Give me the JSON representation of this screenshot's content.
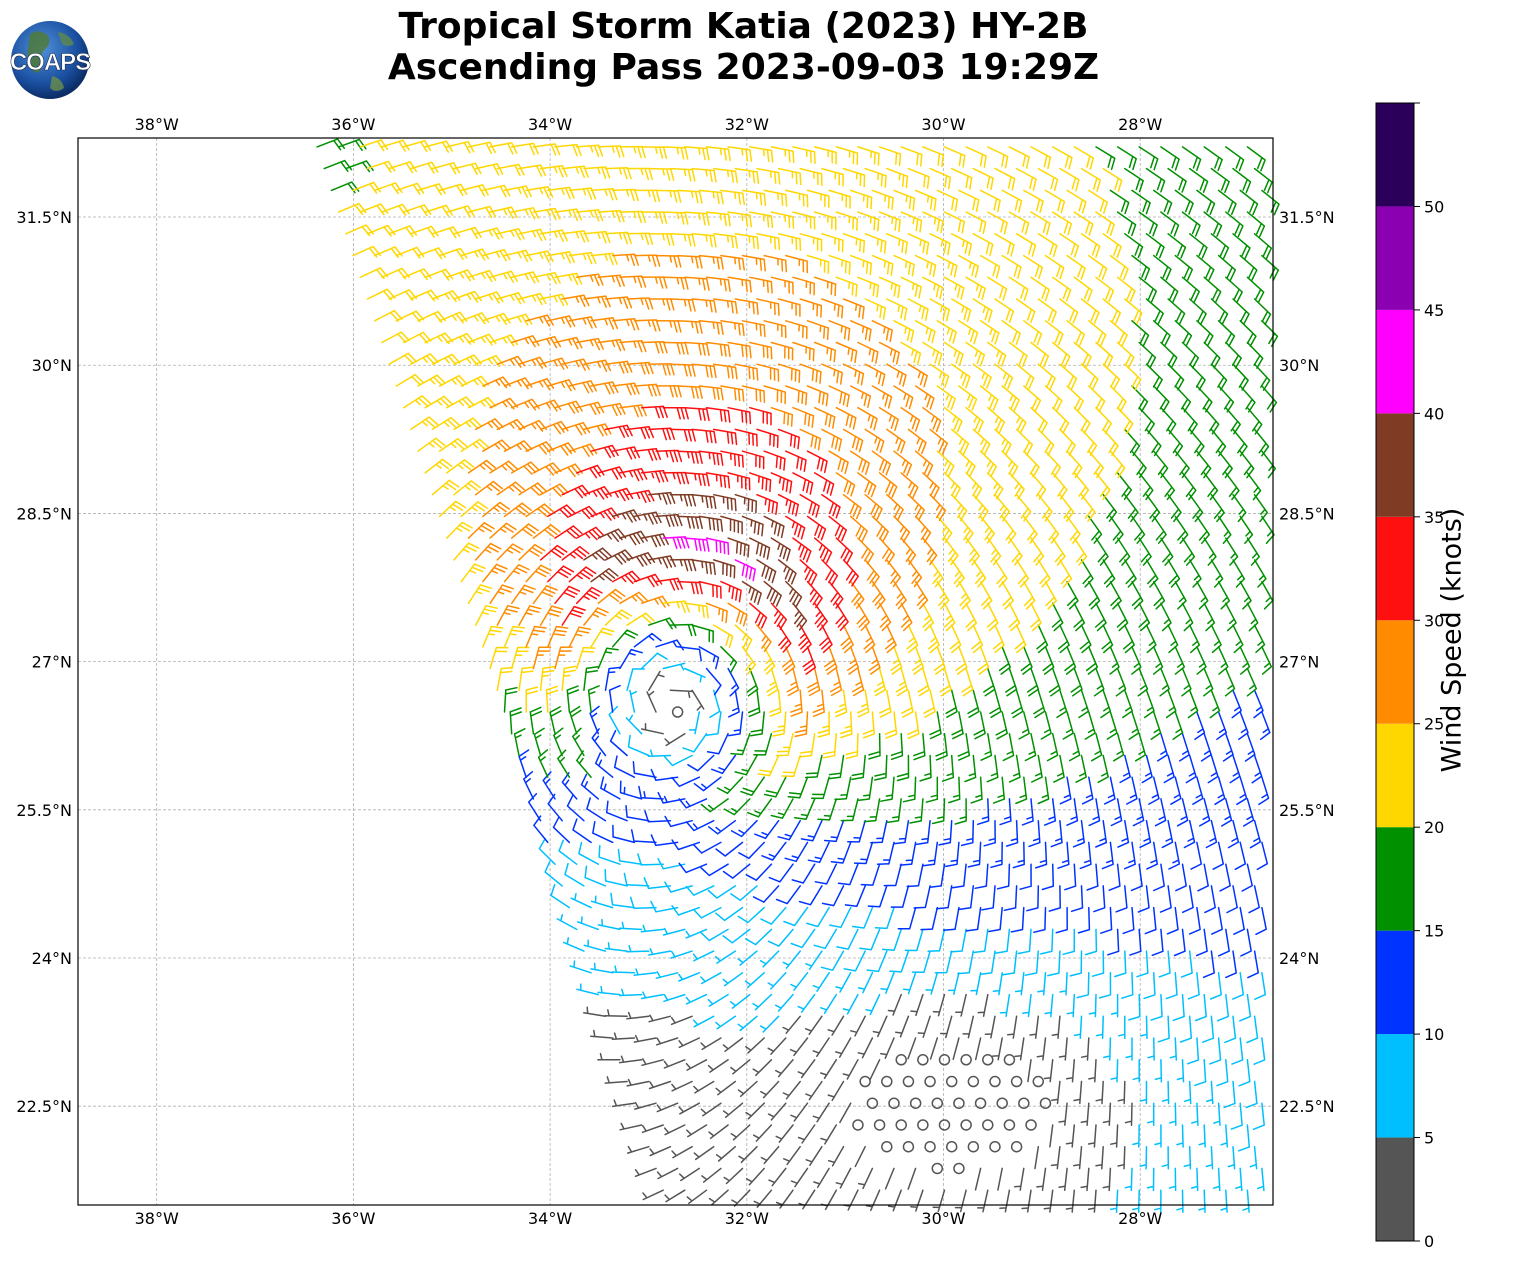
{
  "title_line1": "Tropical Storm Katia (2023) HY-2B",
  "title_line2": "Ascending Pass 2023-09-03 19:29Z",
  "logo_text": "COAPS",
  "map": {
    "lon_min": -38.8,
    "lon_max": -26.65,
    "lat_min": 21.5,
    "lat_max": 32.3,
    "lon_ticks": [
      -38,
      -36,
      -34,
      -32,
      -30,
      -28
    ],
    "lon_tick_labels": [
      "38°W",
      "36°W",
      "34°W",
      "32°W",
      "30°W",
      "28°W"
    ],
    "lat_ticks": [
      22.5,
      24,
      25.5,
      27,
      28.5,
      30,
      31.5
    ],
    "lat_tick_labels": [
      "22.5°N",
      "24°N",
      "25.5°N",
      "27°N",
      "28.5°N",
      "30°N",
      "31.5°N"
    ],
    "gridlines": true,
    "swath_corners": {
      "top_left_lon": -36.4,
      "top_right_lon": -26.65,
      "bottom_left_lon": -32.8,
      "bottom_right_lon": -26.65
    },
    "storm_center": {
      "lon": -32.7,
      "lat": 26.9
    }
  },
  "colorbar": {
    "label": "Wind Speed (knots)",
    "ticks": [
      0,
      5,
      10,
      15,
      20,
      25,
      30,
      35,
      40,
      45,
      50
    ],
    "bins": [
      {
        "min": 0,
        "max": 5,
        "color": "#555555"
      },
      {
        "min": 5,
        "max": 10,
        "color": "#00bfff"
      },
      {
        "min": 10,
        "max": 15,
        "color": "#0033ff"
      },
      {
        "min": 15,
        "max": 20,
        "color": "#009000"
      },
      {
        "min": 20,
        "max": 25,
        "color": "#ffd700"
      },
      {
        "min": 25,
        "max": 30,
        "color": "#ff8c00"
      },
      {
        "min": 30,
        "max": 35,
        "color": "#ff1010"
      },
      {
        "min": 35,
        "max": 40,
        "color": "#7f3b24"
      },
      {
        "min": 40,
        "max": 45,
        "color": "#ff00ff"
      },
      {
        "min": 45,
        "max": 50,
        "color": "#8b00b0"
      },
      {
        "min": 50,
        "max": 55,
        "color": "#2a005a"
      }
    ]
  }
}
